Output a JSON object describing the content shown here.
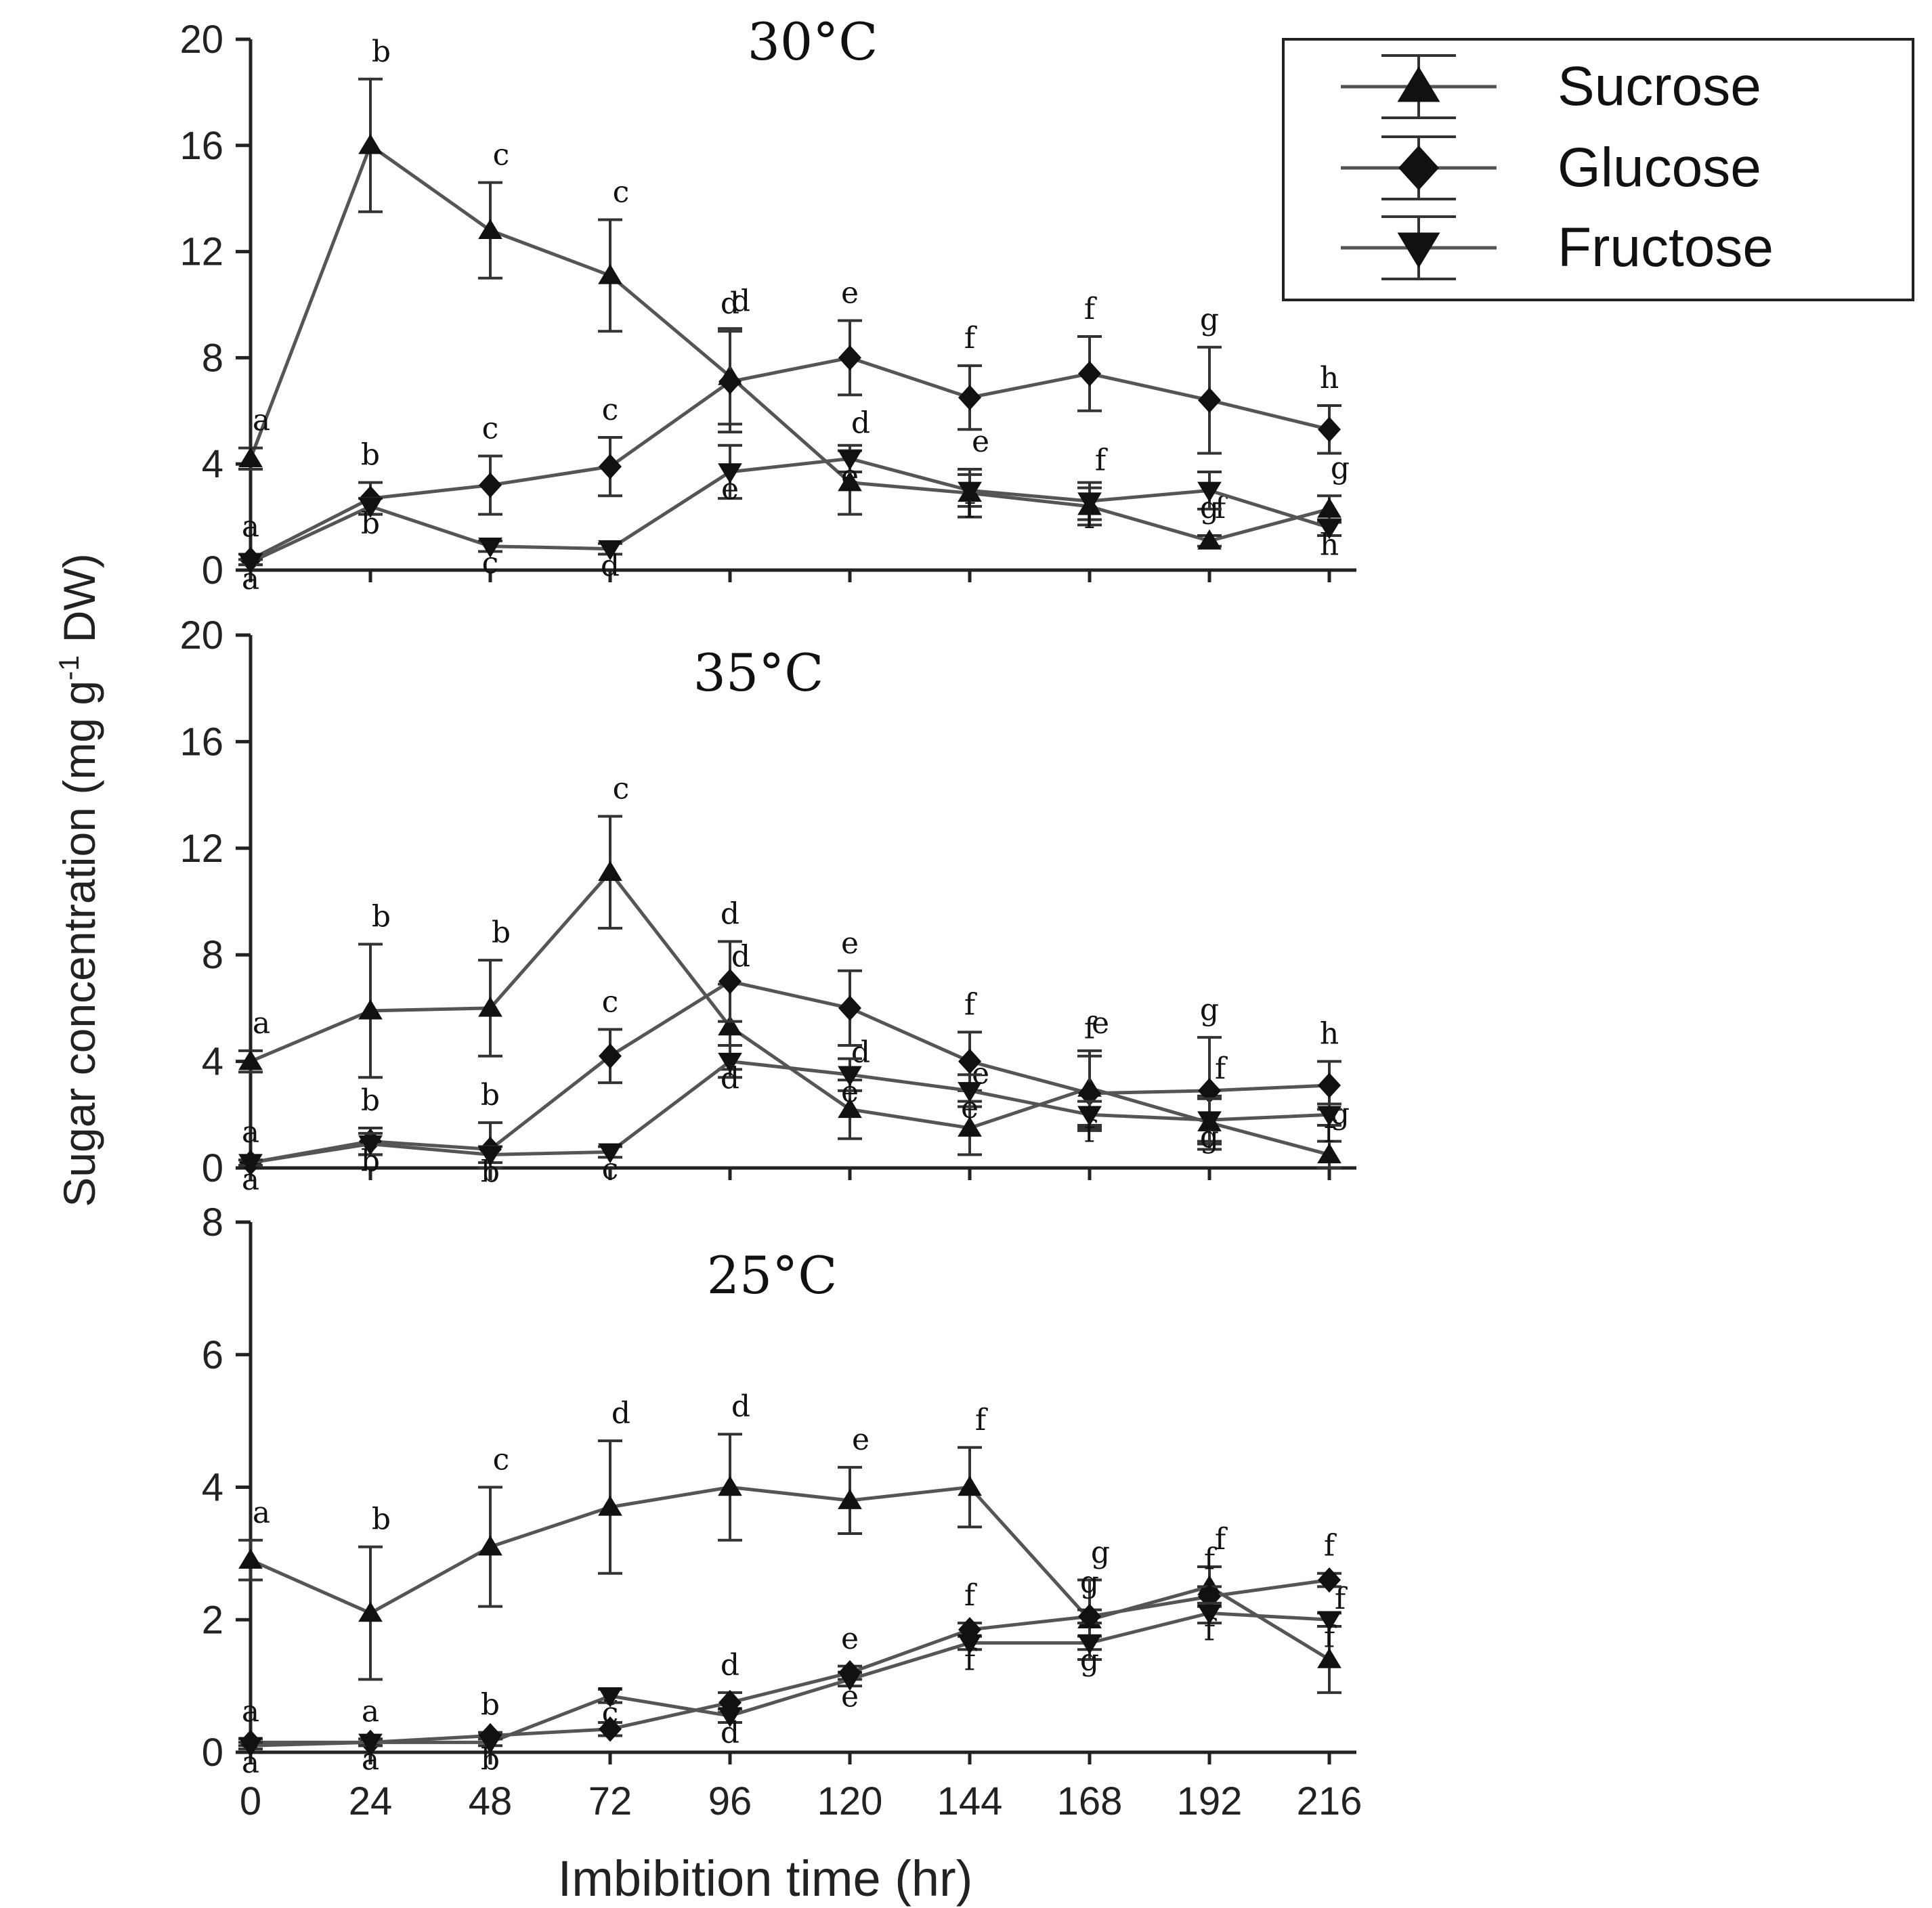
{
  "chart_data": {
    "type": "line",
    "y_axis_label": "Sugar concentration (mg g",
    "y_axis_label_sup": "-1",
    "y_axis_label_end": " DW)",
    "x_axis_label": "Imbibition time (hr)",
    "x": [
      0,
      24,
      48,
      72,
      96,
      120,
      144,
      168,
      192,
      216
    ],
    "x_tick_labels": [
      "0",
      "24",
      "48",
      "72",
      "96",
      "120",
      "144",
      "168",
      "192",
      "216"
    ],
    "legend": [
      "Sucrose",
      "Glucose",
      "Fructose"
    ],
    "legend_position": "top-right",
    "colors": {
      "line": "#555555",
      "marker": "#111111",
      "axis": "#222222"
    },
    "panels": [
      {
        "title": "30°C",
        "ylim": [
          0,
          20
        ],
        "y_ticks": [
          "0",
          "4",
          "8",
          "12",
          "16",
          "20"
        ],
        "series": [
          {
            "name": "Sucrose",
            "marker": "triangle-up",
            "values": [
              4.2,
              16.0,
              12.8,
              11.1,
              7.3,
              3.3,
              2.9,
              2.4,
              1.1,
              2.3
            ],
            "errors": [
              0.4,
              2.5,
              1.8,
              2.1,
              1.8,
              1.2,
              0.9,
              0.7,
              0.2,
              0.5
            ],
            "letters": [
              "a",
              "b",
              "c",
              "c",
              "d",
              "d",
              "e",
              "f",
              "f",
              "g"
            ]
          },
          {
            "name": "Glucose",
            "marker": "diamond",
            "values": [
              0.4,
              2.7,
              3.2,
              3.9,
              7.1,
              8.0,
              6.5,
              7.4,
              6.4,
              5.3
            ],
            "errors": [
              0.2,
              0.6,
              1.1,
              1.1,
              1.9,
              1.4,
              1.2,
              1.4,
              2.0,
              0.9
            ],
            "letters": [
              "a",
              "b",
              "c",
              "c",
              "d",
              "e",
              "f",
              "f",
              "g",
              "h"
            ]
          },
          {
            "name": "Fructose",
            "marker": "triangle-down",
            "values": [
              0.3,
              2.4,
              0.9,
              0.8,
              3.7,
              4.2,
              3.0,
              2.6,
              3.0,
              1.6
            ],
            "errors": [
              0.1,
              0.3,
              0.2,
              0.2,
              1.0,
              0.5,
              0.6,
              0.7,
              0.7,
              0.3
            ],
            "letters": [
              "a",
              "b",
              "c",
              "d",
              "e",
              "e",
              "f",
              "f",
              "g",
              "h"
            ]
          }
        ]
      },
      {
        "title": "35°C",
        "ylim": [
          0,
          20
        ],
        "y_ticks": [
          "0",
          "4",
          "8",
          "12",
          "16",
          "20"
        ],
        "series": [
          {
            "name": "Sucrose",
            "marker": "triangle-up",
            "values": [
              4.0,
              5.9,
              6.0,
              11.1,
              5.3,
              2.2,
              1.5,
              3.0,
              1.7,
              0.5
            ],
            "errors": [
              0.4,
              2.5,
              1.8,
              2.1,
              1.6,
              1.1,
              1.0,
              1.4,
              1.0,
              0.5
            ],
            "letters": [
              "a",
              "b",
              "b",
              "c",
              "d",
              "d",
              "e",
              "e",
              "f",
              "g"
            ]
          },
          {
            "name": "Glucose",
            "marker": "diamond",
            "values": [
              0.2,
              1.0,
              0.7,
              4.2,
              7.0,
              6.0,
              4.0,
              2.8,
              2.9,
              3.1
            ],
            "errors": [
              0.1,
              0.5,
              1.0,
              1.0,
              1.5,
              1.4,
              1.1,
              1.4,
              2.0,
              0.9
            ],
            "letters": [
              "a",
              "b",
              "b",
              "c",
              "d",
              "e",
              "f",
              "f",
              "g",
              "h"
            ]
          },
          {
            "name": "Fructose",
            "marker": "triangle-down",
            "values": [
              0.2,
              0.9,
              0.5,
              0.6,
              4.0,
              3.5,
              2.9,
              2.0,
              1.8,
              2.0
            ],
            "errors": [
              0.1,
              0.4,
              0.3,
              0.2,
              0.6,
              0.6,
              0.6,
              0.5,
              0.8,
              0.4
            ],
            "letters": [
              "a",
              "b",
              "b",
              "c",
              "d",
              "e",
              "e",
              "f",
              "g",
              "f"
            ]
          }
        ]
      },
      {
        "title": "25°C",
        "ylim": [
          0,
          8
        ],
        "y_ticks": [
          "0",
          "2",
          "4",
          "6",
          "8"
        ],
        "series": [
          {
            "name": "Sucrose",
            "marker": "triangle-up",
            "values": [
              2.9,
              2.1,
              3.1,
              3.7,
              4.0,
              3.8,
              4.0,
              2.0,
              2.5,
              1.4
            ],
            "errors": [
              0.3,
              1.0,
              0.9,
              1.0,
              0.8,
              0.5,
              0.6,
              0.6,
              0.3,
              0.5
            ],
            "letters": [
              "a",
              "b",
              "c",
              "d",
              "d",
              "e",
              "f",
              "g",
              "f",
              "f"
            ]
          },
          {
            "name": "Glucose",
            "marker": "diamond",
            "values": [
              0.15,
              0.15,
              0.25,
              0.35,
              0.75,
              1.2,
              1.85,
              2.05,
              2.35,
              2.6
            ],
            "errors": [
              0.05,
              0.05,
              0.05,
              0.1,
              0.15,
              0.1,
              0.1,
              0.1,
              0.15,
              0.1
            ],
            "letters": [
              "a",
              "a",
              "b",
              "c",
              "d",
              "e",
              "f",
              "g",
              "f",
              "f"
            ]
          },
          {
            "name": "Fructose",
            "marker": "triangle-down",
            "values": [
              0.1,
              0.15,
              0.15,
              0.85,
              0.55,
              1.1,
              1.65,
              1.65,
              2.1,
              2.0
            ],
            "errors": [
              0.05,
              0.05,
              0.05,
              0.1,
              0.1,
              0.1,
              0.1,
              0.1,
              0.15,
              0.1
            ],
            "letters": [
              "a",
              "a",
              "b",
              "c",
              "d",
              "e",
              "f",
              "g",
              "f",
              "f"
            ]
          }
        ]
      }
    ]
  }
}
